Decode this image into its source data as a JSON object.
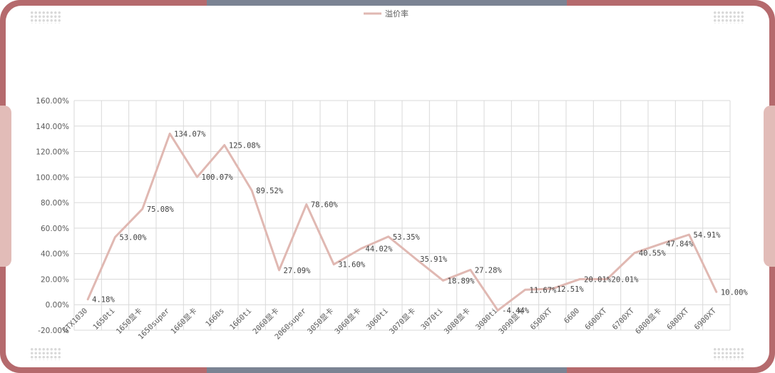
{
  "chart_data": {
    "type": "line",
    "legend": {
      "position": "top",
      "entries": [
        "溢价率"
      ]
    },
    "series": [
      {
        "name": "溢价率",
        "color": "#e0b8b2",
        "values": [
          4.18,
          53.0,
          75.08,
          134.07,
          100.07,
          125.08,
          89.52,
          27.09,
          78.6,
          31.6,
          44.02,
          53.35,
          35.91,
          18.89,
          27.28,
          -4.44,
          11.67,
          12.51,
          20.01,
          20.01,
          40.55,
          47.84,
          54.91,
          10.0
        ]
      }
    ],
    "categories": [
      "GTX1030",
      "1650ti",
      "1650显卡",
      "1650super",
      "1660显卡",
      "1660s",
      "1660ti",
      "2060显卡",
      "2060super",
      "3050显卡",
      "3060显卡",
      "3060ti",
      "3070显卡",
      "3070ti",
      "3080显卡",
      "3080ti",
      "3090显卡",
      "6500XT",
      "6600",
      "6600XT",
      "6700XT",
      "6800显卡",
      "6800XT",
      "6900XT"
    ],
    "data_labels": [
      "4.18%",
      "53.00%",
      "75.08%",
      "134.07%",
      "100.07%",
      "125.08%",
      "89.52%",
      "27.09%",
      "78.60%",
      "31.60%",
      "44.02%",
      "53.35%",
      "35.91%",
      "18.89%",
      "27.28%",
      "-4.44%",
      "11.67%",
      "12.51%",
      "20.01%",
      "20.01%",
      "40.55%",
      "47.84%",
      "54.91%",
      "10.00%"
    ],
    "y_ticks": [
      "-20.00%",
      "0.00%",
      "20.00%",
      "40.00%",
      "60.00%",
      "80.00%",
      "100.00%",
      "120.00%",
      "140.00%",
      "160.00%"
    ],
    "ylim": [
      -20,
      160
    ],
    "grid": true
  }
}
